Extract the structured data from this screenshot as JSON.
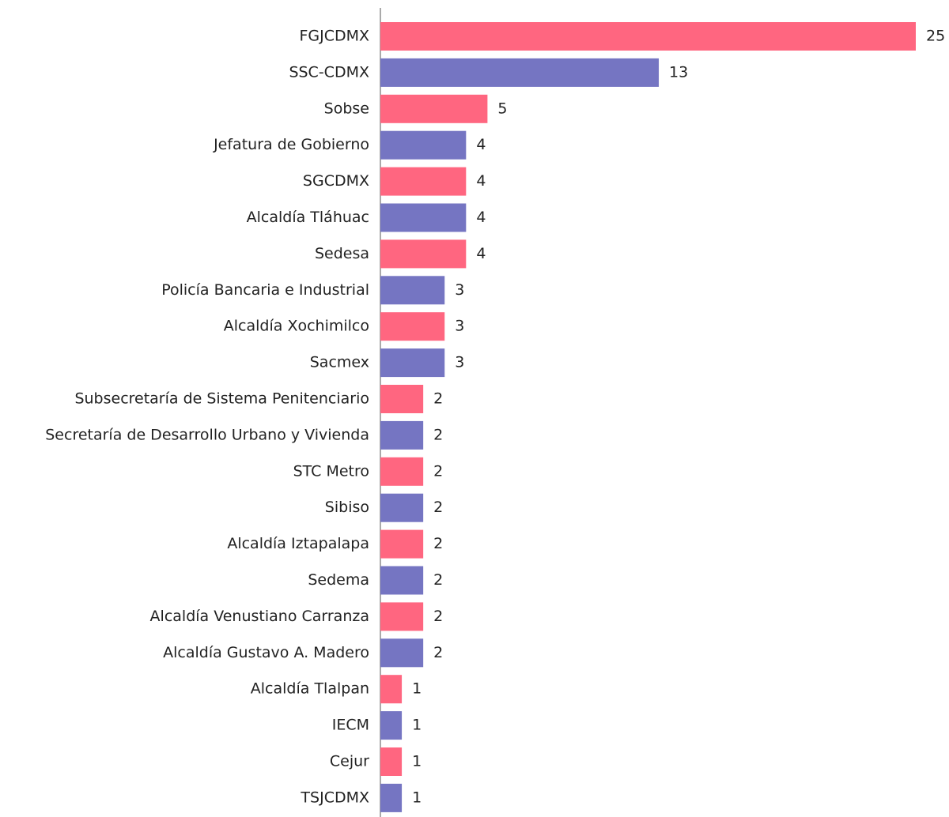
{
  "chart_data": {
    "type": "hbar",
    "categories": [
      "FGJCDMX",
      "SSC-CDMX",
      "Sobse",
      "Jefatura de Gobierno",
      "SGCDMX",
      "Alcaldía Tláhuac",
      "Sedesa",
      "Policía Bancaria e Industrial",
      "Alcaldía Xochimilco",
      "Sacmex",
      "Subsecretaría de Sistema Penitenciario",
      "Secretaría de Desarrollo Urbano y Vivienda",
      "STC Metro",
      "Sibiso",
      "Alcaldía Iztapalapa",
      "Sedema",
      "Alcaldía Venustiano Carranza",
      "Alcaldía Gustavo A. Madero",
      "Alcaldía Tlalpan",
      "IECM",
      "Cejur",
      "TSJCDMX"
    ],
    "values": [
      25,
      13,
      5,
      4,
      4,
      4,
      4,
      3,
      3,
      3,
      2,
      2,
      2,
      2,
      2,
      2,
      2,
      2,
      1,
      1,
      1,
      1
    ],
    "colors": [
      "#ff6680",
      "#7575c2"
    ]
  }
}
